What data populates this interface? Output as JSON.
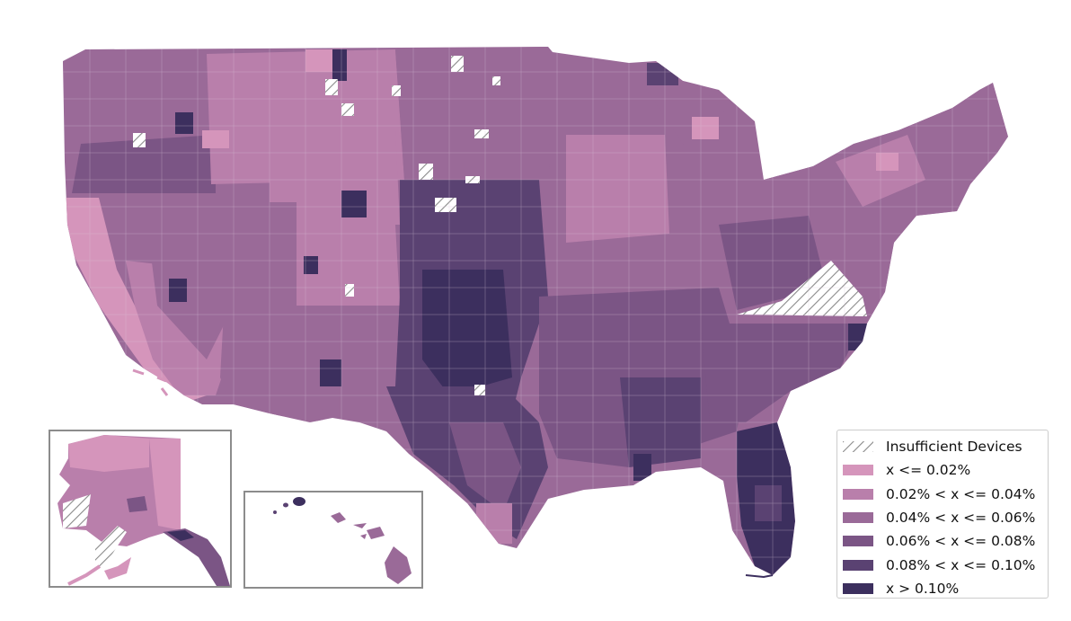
{
  "colors": {
    "insufficient": "#ffffff",
    "hatch": "#8a8a8a",
    "bins": [
      "#d595bb",
      "#b97fab",
      "#9a6a98",
      "#7b5585",
      "#5a4272",
      "#3c2f5e"
    ],
    "county_border": "#d9c6d9",
    "inset_border": "#8c8c8c"
  },
  "legend": {
    "items": [
      {
        "label": "Insufficient Devices",
        "swatch": "hatch"
      },
      {
        "label": "x <= 0.02%",
        "swatch": "bin0"
      },
      {
        "label": "0.02% < x <= 0.04%",
        "swatch": "bin1"
      },
      {
        "label": "0.04% < x <= 0.06%",
        "swatch": "bin2"
      },
      {
        "label": "0.06% < x <= 0.08%",
        "swatch": "bin3"
      },
      {
        "label": "0.08% < x <= 0.10%",
        "swatch": "bin4"
      },
      {
        "label": "x > 0.10%",
        "swatch": "bin5"
      }
    ]
  },
  "insets": {
    "alaska": "alaska-inset",
    "hawaii": "hawaii-inset"
  }
}
